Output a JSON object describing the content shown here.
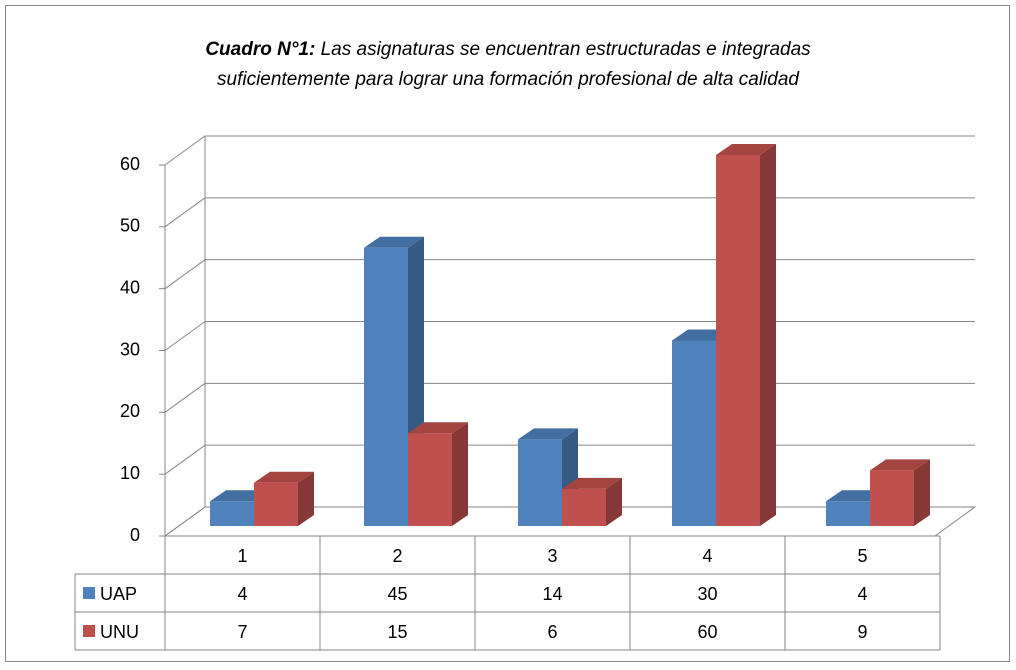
{
  "chart_data": {
    "type": "bar3d",
    "title_prefix": "Cuadro N°1:",
    "title_lines": [
      "Las asignaturas se encuentran estructuradas e integradas",
      "suficientemente para lograr una formación profesional de alta calidad"
    ],
    "categories": [
      "1",
      "2",
      "3",
      "4",
      "5"
    ],
    "series": [
      {
        "name": "UAP",
        "color": "#4f81bd",
        "values": [
          4,
          45,
          14,
          30,
          4
        ]
      },
      {
        "name": "UNU",
        "color": "#c0504d",
        "values": [
          7,
          15,
          6,
          60,
          9
        ]
      }
    ],
    "ylim": [
      0,
      60
    ],
    "yticks": [
      0,
      10,
      20,
      30,
      40,
      50,
      60
    ],
    "grid": true,
    "data_table": true
  }
}
